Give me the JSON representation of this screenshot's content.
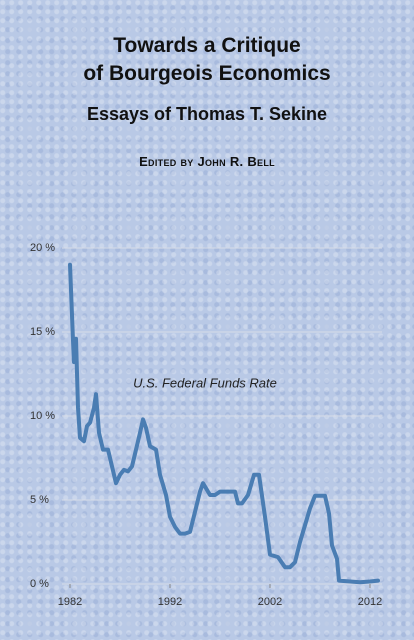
{
  "cover": {
    "title_line1": "Towards a Critique",
    "title_line2": "of Bourgeois Economics",
    "subtitle": "Essays of Thomas T. Sekine",
    "editor": "Edited by John R. Bell"
  },
  "chart_data": {
    "type": "line",
    "annotation": "U.S. Federal Funds Rate",
    "color": "#4a7db3",
    "grid": true,
    "xlim": [
      1982,
      2012.8
    ],
    "xticks": [
      1982,
      1992,
      2002,
      2012
    ],
    "ylim": [
      0,
      20
    ],
    "yticks": [
      {
        "value": 0,
        "label": "0 %"
      },
      {
        "value": 5,
        "label": "5 %"
      },
      {
        "value": 10,
        "label": "10 %"
      },
      {
        "value": 15,
        "label": "15 %"
      },
      {
        "value": 20,
        "label": "20 %"
      }
    ],
    "x": [
      1982.0,
      1982.3,
      1982.4,
      1982.6,
      1982.8,
      1983.0,
      1983.4,
      1983.7,
      1984.0,
      1984.4,
      1984.6,
      1984.9,
      1985.3,
      1985.8,
      1986.2,
      1986.6,
      1987.0,
      1987.4,
      1987.8,
      1988.2,
      1988.6,
      1989.0,
      1989.3,
      1989.6,
      1990.0,
      1990.6,
      1991.0,
      1991.6,
      1992.0,
      1992.5,
      1993.0,
      1993.5,
      1994.0,
      1994.5,
      1995.0,
      1995.3,
      1996.0,
      1996.5,
      1997.0,
      1998.0,
      1998.5,
      1998.8,
      1999.2,
      1999.8,
      2000.4,
      2000.9,
      2001.5,
      2002.0,
      2002.8,
      2003.5,
      2004.0,
      2004.5,
      2005.0,
      2006.0,
      2006.5,
      2007.5,
      2007.9,
      2008.2,
      2008.7,
      2008.9,
      2010.0,
      2011.0,
      2012.0,
      2012.8
    ],
    "values": [
      19,
      14.5,
      13.2,
      14.6,
      10.5,
      8.7,
      8.5,
      9.4,
      9.6,
      10.5,
      11.3,
      9,
      8,
      8,
      7,
      6,
      6.5,
      6.8,
      6.7,
      7,
      8,
      9,
      9.8,
      9.3,
      8.2,
      8,
      6.5,
      5.3,
      4,
      3.4,
      3,
      3,
      3.1,
      4.3,
      5.5,
      6,
      5.3,
      5.3,
      5.5,
      5.5,
      5.5,
      4.8,
      4.8,
      5.3,
      6.5,
      6.5,
      4,
      1.75,
      1.6,
      1,
      1,
      1.3,
      2.5,
      4.5,
      5.25,
      5.25,
      4.2,
      2.3,
      1.5,
      0.2,
      0.15,
      0.1,
      0.15,
      0.2
    ]
  }
}
